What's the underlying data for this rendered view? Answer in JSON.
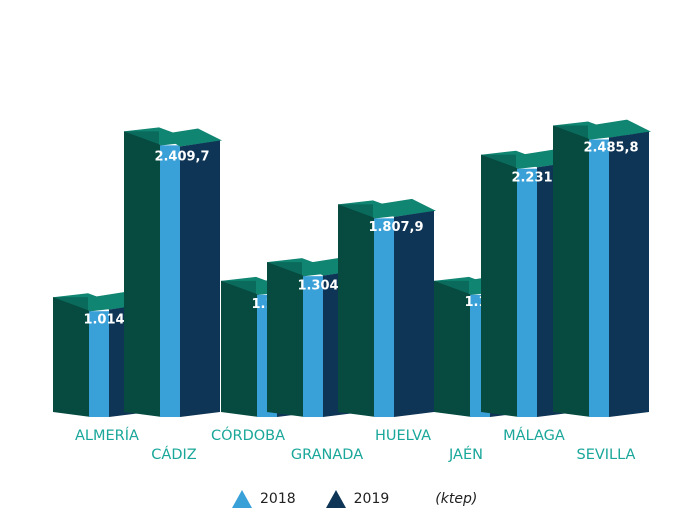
{
  "chart_data": {
    "type": "bar",
    "categories": [
      "ALMERÍA",
      "CÁDIZ",
      "CÓRDOBA",
      "GRANADA",
      "HUELVA",
      "JAÉN",
      "MÁLAGA",
      "SEVILLA"
    ],
    "series": [
      {
        "name": "2018",
        "values": [
          1000,
          2420,
          1140,
          1300,
          1795,
          1140,
          2220,
          2470
        ]
      },
      {
        "name": "2019",
        "values": [
          1014.0,
          2409.7,
          1147.7,
          1304.1,
          1807.9,
          1164.9,
          2231.2,
          2485.8
        ]
      }
    ],
    "data_labels": [
      "1.014,0",
      "2.409,7",
      "1.147,7",
      "1.304,1",
      "1.807,9",
      "1.164,9",
      "2.231,2",
      "2.485,8"
    ],
    "unit": "(ktep)",
    "title": "",
    "xlabel": "",
    "ylabel": "",
    "ylim": [
      0,
      2700
    ],
    "legend_position": "bottom",
    "grid": false,
    "colors": {
      "series_2018": "#3aa0d8",
      "series_2019": "#0e3555",
      "block_front": "#0a6a5c",
      "block_side": "#064a40",
      "block_top": "#0f8572",
      "category_text": "#1aa79a"
    }
  },
  "legend": {
    "items": [
      {
        "label": "2018",
        "icon": "triangle-up-icon",
        "color": "#3aa0d8"
      },
      {
        "label": "2019",
        "icon": "triangle-up-icon",
        "color": "#0e3555"
      }
    ],
    "unit": "(ktep)"
  }
}
